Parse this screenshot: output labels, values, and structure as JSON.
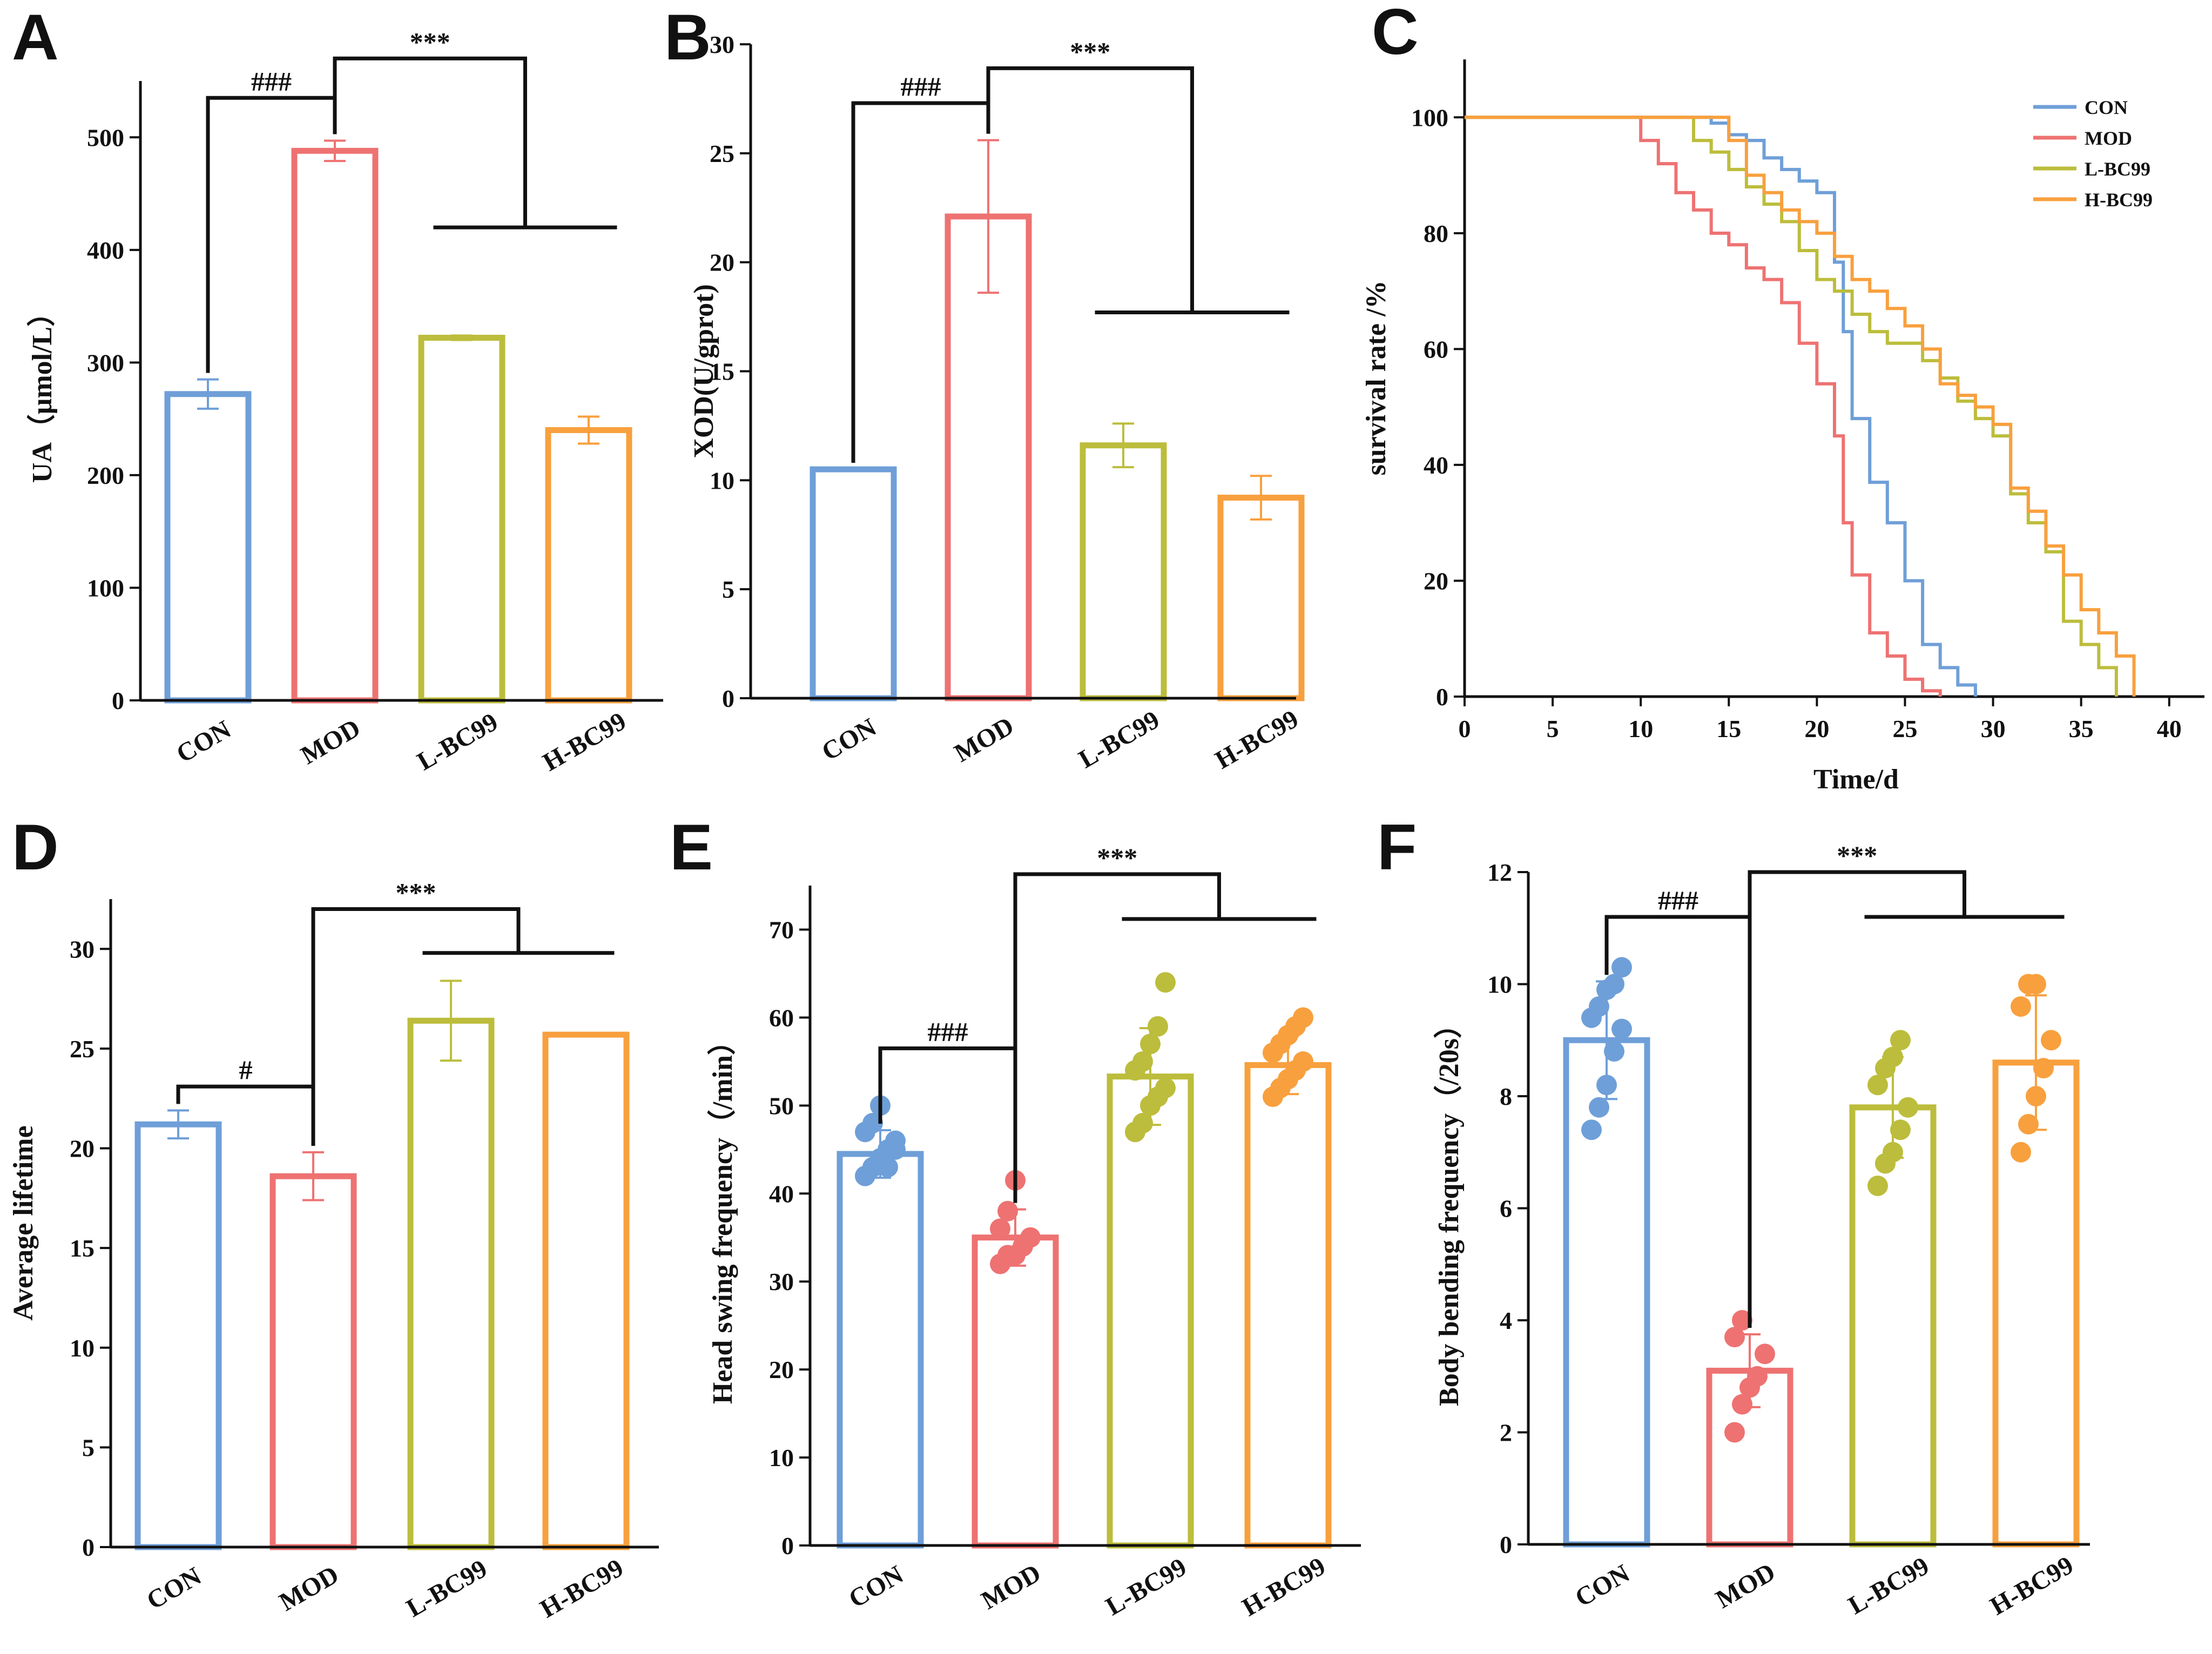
{
  "colors": {
    "CON": "#6f9fd8",
    "MOD": "#ee7272",
    "L-BC99": "#bcbd3c",
    "H-BC99": "#f8a03e",
    "axis": "#111111"
  },
  "chart_data": [
    {
      "panel": "A",
      "type": "bar",
      "categories": [
        "CON",
        "MOD",
        "L-BC99",
        "H-BC99"
      ],
      "values": [
        272,
        488,
        322,
        240
      ],
      "errors": [
        13,
        9,
        2,
        12
      ],
      "ylabel": "UA（μmol/L）",
      "ylim": [
        0,
        550
      ],
      "yticks": [
        0,
        100,
        200,
        300,
        400,
        500
      ],
      "significance": [
        {
          "label": "###",
          "from": "CON",
          "to": "MOD",
          "level": 535
        },
        {
          "label": "***",
          "from": "MOD",
          "to": "L-BC99,H-BC99",
          "level": 570,
          "sub_level": 420
        }
      ]
    },
    {
      "panel": "B",
      "type": "bar",
      "categories": [
        "CON",
        "MOD",
        "L-BC99",
        "H-BC99"
      ],
      "values": [
        10.5,
        22.1,
        11.6,
        9.2
      ],
      "errors": [
        0,
        3.5,
        1.0,
        1.0
      ],
      "ylabel": "XOD(U/gprot)",
      "ylim": [
        0,
        30
      ],
      "yticks": [
        0,
        5,
        10,
        15,
        20,
        25,
        30
      ],
      "significance": [
        {
          "label": "###",
          "from": "CON",
          "to": "MOD",
          "level": 27.3
        },
        {
          "label": "***",
          "from": "MOD",
          "to": "L-BC99,H-BC99",
          "level": 28.9,
          "sub_level": 17.7
        }
      ]
    },
    {
      "panel": "C",
      "type": "line",
      "xlabel": "Time/d",
      "ylabel": "survival rate /%",
      "xlim": [
        0,
        42
      ],
      "ylim": [
        0,
        110
      ],
      "xticks": [
        0,
        5,
        10,
        15,
        20,
        25,
        30,
        35,
        40
      ],
      "yticks": [
        0,
        20,
        40,
        60,
        80,
        100
      ],
      "legend": "top-right",
      "series": [
        {
          "name": "CON",
          "steps": [
            [
              0,
              100
            ],
            [
              14,
              100
            ],
            [
              14,
              99
            ],
            [
              15,
              97
            ],
            [
              16,
              96
            ],
            [
              17,
              93
            ],
            [
              18,
              91
            ],
            [
              19,
              89
            ],
            [
              20,
              87
            ],
            [
              21,
              75
            ],
            [
              21.5,
              63
            ],
            [
              22,
              48
            ],
            [
              23,
              37
            ],
            [
              24,
              30
            ],
            [
              25,
              20
            ],
            [
              26,
              9
            ],
            [
              27,
              5
            ],
            [
              28,
              2
            ],
            [
              29,
              1
            ],
            [
              29,
              0
            ]
          ]
        },
        {
          "name": "MOD",
          "steps": [
            [
              0,
              100
            ],
            [
              10,
              100
            ],
            [
              10,
              96
            ],
            [
              11,
              92
            ],
            [
              12,
              87
            ],
            [
              13,
              84
            ],
            [
              14,
              80
            ],
            [
              15,
              78
            ],
            [
              16,
              74
            ],
            [
              17,
              72
            ],
            [
              18,
              68
            ],
            [
              19,
              61
            ],
            [
              20,
              54
            ],
            [
              21,
              45
            ],
            [
              21.5,
              30
            ],
            [
              22,
              21
            ],
            [
              23,
              11
            ],
            [
              24,
              7
            ],
            [
              25,
              3
            ],
            [
              26,
              1
            ],
            [
              27,
              0
            ]
          ]
        },
        {
          "name": "L-BC99",
          "steps": [
            [
              0,
              100
            ],
            [
              13,
              100
            ],
            [
              13,
              96
            ],
            [
              14,
              94
            ],
            [
              15,
              91
            ],
            [
              16,
              88
            ],
            [
              17,
              85
            ],
            [
              18,
              82
            ],
            [
              19,
              77
            ],
            [
              20,
              72
            ],
            [
              21,
              70
            ],
            [
              22,
              66
            ],
            [
              23,
              63
            ],
            [
              24,
              61
            ],
            [
              25,
              61
            ],
            [
              26,
              58
            ],
            [
              27,
              55
            ],
            [
              28,
              51
            ],
            [
              29,
              48
            ],
            [
              30,
              45
            ],
            [
              31,
              35
            ],
            [
              32,
              30
            ],
            [
              33,
              25
            ],
            [
              34,
              13
            ],
            [
              35,
              9
            ],
            [
              36,
              5
            ],
            [
              37,
              1
            ],
            [
              37,
              0
            ]
          ]
        },
        {
          "name": "H-BC99",
          "steps": [
            [
              0,
              100
            ],
            [
              15,
              100
            ],
            [
              15,
              96
            ],
            [
              16,
              90
            ],
            [
              17,
              87
            ],
            [
              18,
              84
            ],
            [
              19,
              82
            ],
            [
              20,
              80
            ],
            [
              21,
              76
            ],
            [
              22,
              72
            ],
            [
              23,
              70
            ],
            [
              24,
              67
            ],
            [
              25,
              64
            ],
            [
              26,
              60
            ],
            [
              27,
              54
            ],
            [
              28,
              52
            ],
            [
              29,
              50
            ],
            [
              30,
              47
            ],
            [
              31,
              36
            ],
            [
              32,
              32
            ],
            [
              33,
              26
            ],
            [
              34,
              21
            ],
            [
              35,
              15
            ],
            [
              36,
              11
            ],
            [
              37,
              7
            ],
            [
              38,
              3
            ],
            [
              38,
              0
            ]
          ]
        }
      ]
    },
    {
      "panel": "D",
      "type": "bar",
      "categories": [
        "CON",
        "MOD",
        "L-BC99",
        "H-BC99"
      ],
      "values": [
        21.2,
        18.6,
        26.4,
        25.7
      ],
      "errors": [
        0.7,
        1.2,
        2.0,
        0
      ],
      "ylabel": "Average lifetime",
      "ylim": [
        0,
        32.5
      ],
      "yticks": [
        0,
        5,
        10,
        15,
        20,
        25,
        30
      ],
      "significance": [
        {
          "label": "#",
          "from": "CON",
          "to": "MOD",
          "level": 23.1
        },
        {
          "label": "***",
          "from": "MOD",
          "to": "L-BC99,H-BC99",
          "level": 32.0,
          "sub_level": 29.8
        }
      ]
    },
    {
      "panel": "E",
      "type": "bar",
      "categories": [
        "CON",
        "MOD",
        "L-BC99",
        "H-BC99"
      ],
      "values": [
        44.5,
        35.0,
        53.3,
        54.6
      ],
      "errors": [
        2.7,
        3.2,
        5.5,
        3.3
      ],
      "points": [
        [
          42,
          43,
          44,
          45,
          46,
          47,
          48,
          50,
          43,
          45
        ],
        [
          32,
          33,
          33,
          34,
          35,
          36,
          38,
          41.5
        ],
        [
          47,
          48,
          50,
          51,
          52,
          54,
          55,
          57,
          59,
          64
        ],
        [
          51,
          52,
          53,
          54,
          55,
          56,
          57,
          58,
          59,
          60
        ]
      ],
      "ylabel": "Head swing frequency（/min）",
      "ylim": [
        0,
        75
      ],
      "yticks": [
        0,
        10,
        20,
        30,
        40,
        50,
        60,
        70
      ],
      "significance": [
        {
          "label": "###",
          "from": "CON",
          "to": "MOD",
          "level": 56.5
        },
        {
          "label": "***",
          "from": "MOD",
          "to": "L-BC99,H-BC99",
          "level": 76.3,
          "sub_level": 71.2
        }
      ]
    },
    {
      "panel": "F",
      "type": "bar",
      "categories": [
        "CON",
        "MOD",
        "L-BC99",
        "H-BC99"
      ],
      "values": [
        9.0,
        3.1,
        7.8,
        8.6
      ],
      "errors": [
        1.05,
        0.65,
        0.9,
        1.2
      ],
      "points": [
        [
          7.4,
          7.8,
          8.2,
          8.8,
          9.2,
          9.4,
          9.6,
          9.9,
          10.0,
          10.3
        ],
        [
          2.0,
          2.5,
          2.8,
          3.0,
          3.4,
          3.7,
          4.0
        ],
        [
          6.4,
          6.8,
          7.0,
          7.4,
          7.8,
          8.2,
          8.5,
          8.7,
          9.0
        ],
        [
          7.0,
          7.5,
          8.0,
          8.5,
          9.0,
          9.6,
          10.0,
          10.0
        ]
      ],
      "ylabel": "Body bending frequency（/20s）",
      "ylim": [
        0,
        12
      ],
      "yticks": [
        0,
        2,
        4,
        6,
        8,
        10,
        12
      ],
      "significance": [
        {
          "label": "###",
          "from": "CON",
          "to": "MOD",
          "level": 11.2
        },
        {
          "label": "***",
          "from": "MOD",
          "to": "L-BC99,H-BC99",
          "level": 12.0,
          "sub_level": 11.2
        }
      ]
    }
  ]
}
